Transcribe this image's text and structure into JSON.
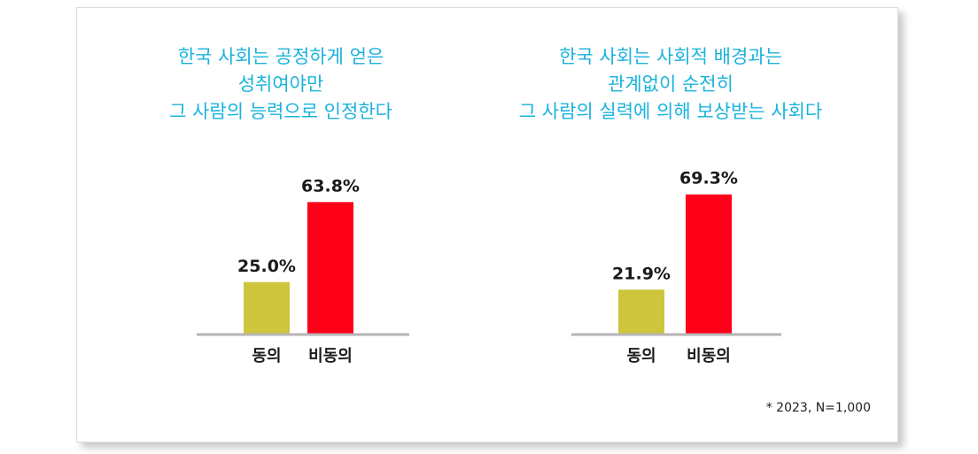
{
  "colors": {
    "agree": "#cdc53c",
    "disagree": "#ff0019",
    "title": "#1ab3dc",
    "axis": "#b5b5b5"
  },
  "chart_data": [
    {
      "type": "bar",
      "title": "한국 사회는 공정하게 얻은\n성취여야만\n그 사람의 능력으로 인정한다",
      "categories": [
        "동의",
        "비동의"
      ],
      "values": [
        25.0,
        63.8
      ],
      "value_labels": [
        "25.0%",
        "63.8%"
      ],
      "ylim": [
        0,
        80
      ],
      "grid": false,
      "legend": "none"
    },
    {
      "type": "bar",
      "title": "한국 사회는 사회적 배경과는\n관계없이 순전히\n그 사람의 실력에 의해 보상받는 사회다",
      "categories": [
        "동의",
        "비동의"
      ],
      "values": [
        21.9,
        69.3
      ],
      "value_labels": [
        "21.9%",
        "69.3%"
      ],
      "ylim": [
        0,
        80
      ],
      "grid": false,
      "legend": "none"
    }
  ],
  "footnote": "* 2023, N=1,000"
}
